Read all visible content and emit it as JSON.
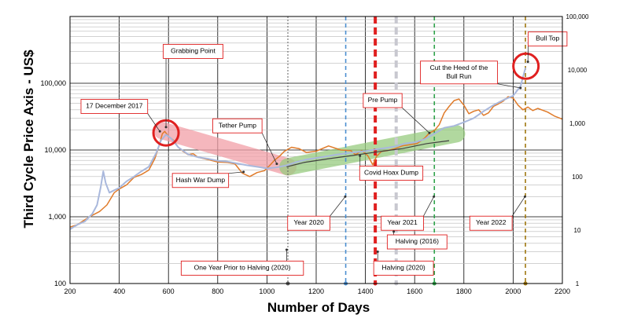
{
  "chart_data": {
    "type": "line",
    "title": "",
    "xlabel": "Number of Days",
    "ylabel": "Third Cycle Price Axis - US$",
    "x_ticks": [
      "200",
      "400",
      "600",
      "800",
      "1000",
      "1200",
      "1400",
      "1600",
      "1800",
      "2000",
      "2200"
    ],
    "y_left_ticks": [
      "100",
      "1,000",
      "10,000",
      "100,000"
    ],
    "y_right_ticks": [
      "1",
      "10",
      "100",
      "1,000",
      "10,000",
      "100,000"
    ],
    "xlim": [
      200,
      2200
    ],
    "ylim_left": [
      100,
      1000000
    ],
    "ylim_right": [
      1,
      100000
    ],
    "yscale": "log",
    "grid": true,
    "series": [
      {
        "name": "",
        "color": "#e07b2a",
        "points": [
          [
            200,
            700
          ],
          [
            230,
            760
          ],
          [
            260,
            900
          ],
          [
            290,
            1050
          ],
          [
            320,
            1200
          ],
          [
            350,
            1500
          ],
          [
            380,
            2300
          ],
          [
            400,
            2600
          ],
          [
            430,
            3000
          ],
          [
            460,
            3900
          ],
          [
            490,
            4300
          ],
          [
            520,
            5000
          ],
          [
            545,
            7500
          ],
          [
            560,
            11000
          ],
          [
            575,
            17500
          ],
          [
            585,
            19000
          ],
          [
            600,
            16000
          ],
          [
            620,
            14000
          ],
          [
            640,
            11000
          ],
          [
            660,
            9500
          ],
          [
            680,
            8500
          ],
          [
            700,
            8800
          ],
          [
            720,
            7800
          ],
          [
            760,
            7200
          ],
          [
            800,
            6600
          ],
          [
            840,
            6500
          ],
          [
            870,
            6200
          ],
          [
            900,
            4500
          ],
          [
            930,
            4000
          ],
          [
            960,
            4600
          ],
          [
            990,
            4900
          ],
          [
            1010,
            5800
          ],
          [
            1030,
            7000
          ],
          [
            1050,
            8000
          ],
          [
            1070,
            9500
          ],
          [
            1100,
            11000
          ],
          [
            1130,
            10500
          ],
          [
            1160,
            9200
          ],
          [
            1200,
            9600
          ],
          [
            1250,
            11500
          ],
          [
            1300,
            10000
          ],
          [
            1340,
            9800
          ],
          [
            1360,
            8500
          ],
          [
            1385,
            9800
          ],
          [
            1410,
            8200
          ],
          [
            1430,
            6000
          ],
          [
            1445,
            8000
          ],
          [
            1465,
            9500
          ],
          [
            1490,
            9800
          ],
          [
            1520,
            10500
          ],
          [
            1550,
            11500
          ],
          [
            1580,
            12000
          ],
          [
            1610,
            12500
          ],
          [
            1640,
            15000
          ],
          [
            1660,
            18000
          ],
          [
            1680,
            19500
          ],
          [
            1700,
            24000
          ],
          [
            1720,
            36000
          ],
          [
            1740,
            45000
          ],
          [
            1760,
            55000
          ],
          [
            1780,
            58000
          ],
          [
            1800,
            47000
          ],
          [
            1820,
            35000
          ],
          [
            1840,
            38000
          ],
          [
            1860,
            40000
          ],
          [
            1880,
            33000
          ],
          [
            1900,
            36000
          ],
          [
            1920,
            45000
          ],
          [
            1940,
            49000
          ],
          [
            1960,
            54000
          ],
          [
            1980,
            63000
          ],
          [
            2000,
            60000
          ],
          [
            2020,
            47000
          ],
          [
            2040,
            40000
          ],
          [
            2060,
            44000
          ],
          [
            2080,
            39000
          ],
          [
            2100,
            42000
          ],
          [
            2140,
            37000
          ],
          [
            2170,
            32000
          ],
          [
            2200,
            29000
          ]
        ]
      },
      {
        "name": "",
        "color": "#a9b8dc",
        "points": [
          [
            200,
            650
          ],
          [
            230,
            760
          ],
          [
            260,
            850
          ],
          [
            290,
            1100
          ],
          [
            310,
            1500
          ],
          [
            325,
            2800
          ],
          [
            335,
            4800
          ],
          [
            345,
            3200
          ],
          [
            360,
            2300
          ],
          [
            380,
            2500
          ],
          [
            400,
            2700
          ],
          [
            430,
            3400
          ],
          [
            460,
            4000
          ],
          [
            490,
            4800
          ],
          [
            520,
            5600
          ],
          [
            550,
            9000
          ],
          [
            570,
            14000
          ],
          [
            590,
            17000
          ],
          [
            610,
            15000
          ],
          [
            640,
            11000
          ],
          [
            680,
            8600
          ],
          [
            720,
            7800
          ],
          [
            760,
            7400
          ],
          [
            800,
            6900
          ],
          [
            840,
            6700
          ],
          [
            880,
            6300
          ],
          [
            920,
            5900
          ],
          [
            960,
            5600
          ],
          [
            1000,
            5300
          ],
          [
            1040,
            5500
          ],
          [
            1080,
            5900
          ],
          [
            1120,
            6600
          ],
          [
            1160,
            7200
          ],
          [
            1200,
            7600
          ],
          [
            1240,
            8000
          ],
          [
            1280,
            8500
          ],
          [
            1320,
            8900
          ],
          [
            1360,
            9300
          ],
          [
            1400,
            9600
          ],
          [
            1440,
            10200
          ],
          [
            1480,
            10700
          ],
          [
            1520,
            11300
          ],
          [
            1560,
            12500
          ],
          [
            1600,
            13000
          ],
          [
            1640,
            14500
          ],
          [
            1680,
            17500
          ],
          [
            1720,
            21500
          ],
          [
            1760,
            23000
          ],
          [
            1800,
            26000
          ],
          [
            1840,
            30000
          ],
          [
            1880,
            38000
          ],
          [
            1920,
            47000
          ],
          [
            1960,
            56000
          ],
          [
            2000,
            65000
          ],
          [
            2030,
            90000
          ],
          [
            2050,
            170000
          ]
        ]
      },
      {
        "name": "",
        "color": "#404040",
        "points": [
          [
            1080,
            5600
          ],
          [
            1150,
            6500
          ],
          [
            1250,
            7400
          ],
          [
            1350,
            8300
          ],
          [
            1450,
            9400
          ],
          [
            1550,
            10500
          ],
          [
            1650,
            12500
          ],
          [
            1740,
            13800
          ]
        ]
      }
    ],
    "bands": [
      {
        "color": "#f2a0a8",
        "from": [
          575,
          19500
        ],
        "to": [
          1085,
          5600
        ]
      },
      {
        "color": "#98cc80",
        "from": [
          1085,
          5600
        ],
        "to": [
          1770,
          17500
        ]
      }
    ],
    "vertical_lines": [
      {
        "x": 1085,
        "color": "#606060",
        "style": "dotted"
      },
      {
        "x": 1320,
        "color": "#4b8fd0",
        "style": "dashed"
      },
      {
        "x": 1440,
        "color": "#e02020",
        "style": "dashed-bold"
      },
      {
        "x": 1525,
        "color": "#c8c8d0",
        "style": "dashed-bold"
      },
      {
        "x": 1680,
        "color": "#2fa24a",
        "style": "dashed"
      },
      {
        "x": 2050,
        "color": "#a07810",
        "style": "dashed"
      }
    ],
    "circles": [
      {
        "x": 590,
        "y": 18000
      },
      {
        "x": 2052,
        "y": 180000
      }
    ],
    "annotations": [
      {
        "text": "Grabbing Point",
        "tx": 700,
        "ty": 300000,
        "ax": 590,
        "ay": 22000
      },
      {
        "text": "17 December 2017",
        "tx": 380,
        "ty": 45000,
        "ax": 565,
        "ay": 19000
      },
      {
        "text": "Tether Pump",
        "tx": 880,
        "ty": 23000,
        "ax": 1040,
        "ay": 6200
      },
      {
        "text": "Hash War Dump",
        "tx": 730,
        "ty": 3500,
        "ax": 905,
        "ay": 4700
      },
      {
        "text": "Pre Pump",
        "tx": 1470,
        "ty": 55000,
        "ax": 1660,
        "ay": 18000
      },
      {
        "text": "Cut the Heed of the Bull Run",
        "tx": 1780,
        "ty": 145000,
        "ax": 2030,
        "ay": 85000
      },
      {
        "text": "Bull Top",
        "tx": 2140,
        "ty": 460000,
        "ax": 2060,
        "ay": 210000
      },
      {
        "text": "Covid Hoax Dump",
        "tx": 1505,
        "ty": 4500,
        "ax": 1378,
        "ay": 8200
      },
      {
        "text": "Year 2020",
        "tx": 1170,
        "ty": 800,
        "ax": 1318,
        "ay": 2000
      },
      {
        "text": "Year 2021",
        "tx": 1550,
        "ty": 800,
        "ax": 1678,
        "ay": 2000
      },
      {
        "text": "Year 2022",
        "tx": 1910,
        "ty": 800,
        "ax": 2048,
        "ay": 2000
      },
      {
        "text": "Halving (2016)",
        "tx": 1610,
        "ty": 420,
        "ax": 1515,
        "ay": 600
      },
      {
        "text": "One Year Prior to Halving (2020)",
        "tx": 900,
        "ty": 170,
        "ax": 1080,
        "ay": 320
      },
      {
        "text": "Halving (2020)",
        "tx": 1555,
        "ty": 170,
        "ax": 1450,
        "ay": 300
      }
    ]
  }
}
